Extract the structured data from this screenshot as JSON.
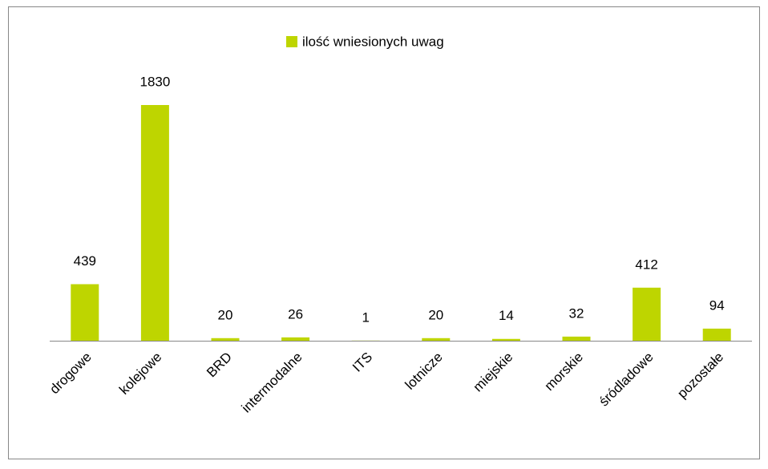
{
  "chart_data": {
    "type": "bar",
    "categories": [
      "drogowe",
      "kolejowe",
      "BRD",
      "intermodalne",
      "ITS",
      "lotnicze",
      "miejskie",
      "morskie",
      "śródladowe",
      "pozostałe"
    ],
    "series": [
      {
        "name": "ilość wniesionych uwag",
        "color": "#bed500",
        "values": [
          439,
          1830,
          20,
          26,
          1,
          20,
          14,
          32,
          412,
          94
        ]
      }
    ],
    "legend": "top"
  }
}
